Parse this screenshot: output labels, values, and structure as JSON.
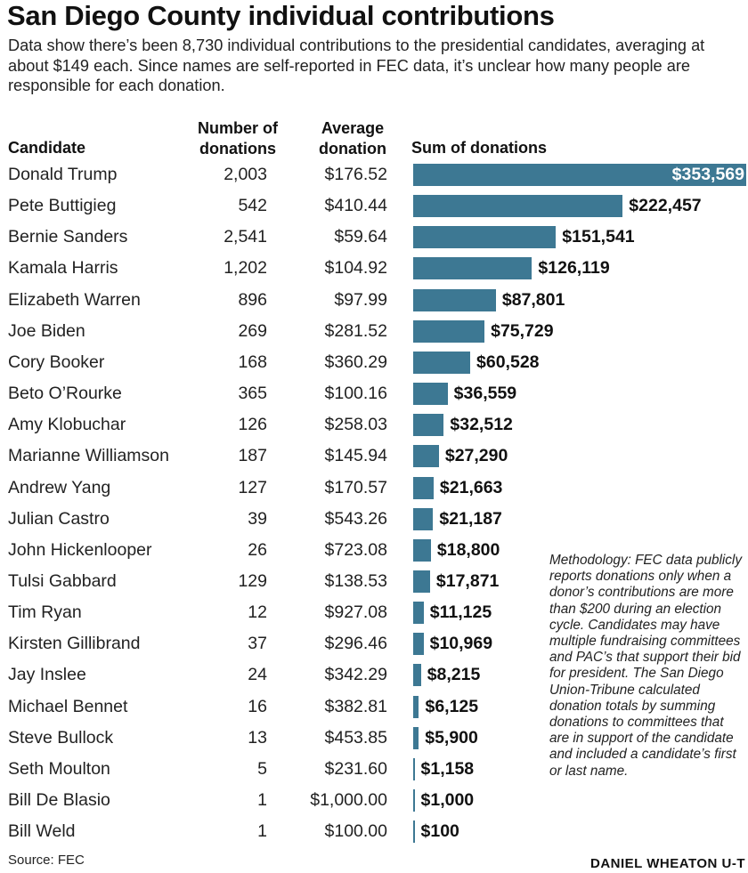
{
  "title": "San Diego County individual contributions",
  "subtitle": "Data show there’s been 8,730 individual contributions to the presidential candidates, averaging at about $149 each. Since names are self-reported in FEC data, it’s unclear how many people are responsible for each donation.",
  "columns": {
    "candidate": "Candidate",
    "number": "Number of donations",
    "average": "Average donation",
    "sum": "Sum of donations"
  },
  "methodology": "Methodology: FEC data publicly reports donations only when a donor’s contributions are more than $200 during an election cycle. Candidates may have multiple fundraising committees and PAC’s that support their bid for president. The San Diego Union-Tribune calculated donation totals by summing donations to committees that are in support of the candidate and included a candidate’s first or last name.",
  "source": "Source: FEC",
  "credit": "DANIEL WHEATON U-T",
  "chart_data": {
    "type": "bar",
    "orientation": "horizontal",
    "bar_color": "#3d7893",
    "rows": [
      {
        "candidate": "Donald Trump",
        "count": "2,003",
        "average": "$176.52",
        "sum": 353569,
        "sum_label": "$353,569"
      },
      {
        "candidate": "Pete Buttigieg",
        "count": "542",
        "average": "$410.44",
        "sum": 222457,
        "sum_label": "$222,457"
      },
      {
        "candidate": "Bernie Sanders",
        "count": "2,541",
        "average": "$59.64",
        "sum": 151541,
        "sum_label": "$151,541"
      },
      {
        "candidate": "Kamala Harris",
        "count": "1,202",
        "average": "$104.92",
        "sum": 126119,
        "sum_label": "$126,119"
      },
      {
        "candidate": "Elizabeth Warren",
        "count": "896",
        "average": "$97.99",
        "sum": 87801,
        "sum_label": "$87,801"
      },
      {
        "candidate": "Joe Biden",
        "count": "269",
        "average": "$281.52",
        "sum": 75729,
        "sum_label": "$75,729"
      },
      {
        "candidate": "Cory Booker",
        "count": "168",
        "average": "$360.29",
        "sum": 60528,
        "sum_label": "$60,528"
      },
      {
        "candidate": "Beto O’Rourke",
        "count": "365",
        "average": "$100.16",
        "sum": 36559,
        "sum_label": "$36,559"
      },
      {
        "candidate": "Amy Klobuchar",
        "count": "126",
        "average": "$258.03",
        "sum": 32512,
        "sum_label": "$32,512"
      },
      {
        "candidate": "Marianne Williamson",
        "count": "187",
        "average": "$145.94",
        "sum": 27290,
        "sum_label": "$27,290"
      },
      {
        "candidate": "Andrew Yang",
        "count": "127",
        "average": "$170.57",
        "sum": 21663,
        "sum_label": "$21,663"
      },
      {
        "candidate": "Julian Castro",
        "count": "39",
        "average": "$543.26",
        "sum": 21187,
        "sum_label": "$21,187"
      },
      {
        "candidate": "John Hickenlooper",
        "count": "26",
        "average": "$723.08",
        "sum": 18800,
        "sum_label": "$18,800"
      },
      {
        "candidate": "Tulsi Gabbard",
        "count": "129",
        "average": "$138.53",
        "sum": 17871,
        "sum_label": "$17,871"
      },
      {
        "candidate": "Tim Ryan",
        "count": "12",
        "average": "$927.08",
        "sum": 11125,
        "sum_label": "$11,125"
      },
      {
        "candidate": "Kirsten Gillibrand",
        "count": "37",
        "average": "$296.46",
        "sum": 10969,
        "sum_label": "$10,969"
      },
      {
        "candidate": "Jay Inslee",
        "count": "24",
        "average": "$342.29",
        "sum": 8215,
        "sum_label": "$8,215"
      },
      {
        "candidate": "Michael Bennet",
        "count": "16",
        "average": "$382.81",
        "sum": 6125,
        "sum_label": "$6,125"
      },
      {
        "candidate": "Steve Bullock",
        "count": "13",
        "average": "$453.85",
        "sum": 5900,
        "sum_label": "$5,900"
      },
      {
        "candidate": "Seth Moulton",
        "count": "5",
        "average": "$231.60",
        "sum": 1158,
        "sum_label": "$1,158"
      },
      {
        "candidate": "Bill De Blasio",
        "count": "1",
        "average": "$1,000.00",
        "sum": 1000,
        "sum_label": "$1,000"
      },
      {
        "candidate": "Bill Weld",
        "count": "1",
        "average": "$100.00",
        "sum": 100,
        "sum_label": "$100"
      }
    ]
  }
}
